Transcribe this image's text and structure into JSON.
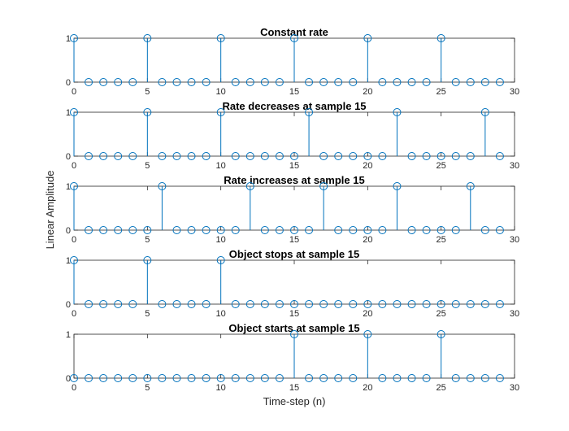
{
  "figure": {
    "xlabel": "Time-step (n)",
    "ylabel": "Linear Amplitude"
  },
  "chart_data": [
    {
      "type": "stem",
      "title": "Constant rate",
      "xlim": [
        0,
        30
      ],
      "ylim": [
        0,
        1
      ],
      "xticks": [
        0,
        5,
        10,
        15,
        20,
        25,
        30
      ],
      "yticks": [
        0,
        1
      ],
      "x": [
        0,
        1,
        2,
        3,
        4,
        5,
        6,
        7,
        8,
        9,
        10,
        11,
        12,
        13,
        14,
        15,
        16,
        17,
        18,
        19,
        20,
        21,
        22,
        23,
        24,
        25,
        26,
        27,
        28,
        29
      ],
      "values": [
        1,
        0,
        0,
        0,
        0,
        1,
        0,
        0,
        0,
        0,
        1,
        0,
        0,
        0,
        0,
        1,
        0,
        0,
        0,
        0,
        1,
        0,
        0,
        0,
        0,
        1,
        0,
        0,
        0,
        0
      ],
      "color": "#0072BD"
    },
    {
      "type": "stem",
      "title": "Rate decreases at sample 15",
      "xlim": [
        0,
        30
      ],
      "ylim": [
        0,
        1
      ],
      "xticks": [
        0,
        5,
        10,
        15,
        20,
        25,
        30
      ],
      "yticks": [
        0,
        1
      ],
      "x": [
        0,
        1,
        2,
        3,
        4,
        5,
        6,
        7,
        8,
        9,
        10,
        11,
        12,
        13,
        14,
        15,
        16,
        17,
        18,
        19,
        20,
        21,
        22,
        23,
        24,
        25,
        26,
        27,
        28,
        29
      ],
      "values": [
        1,
        0,
        0,
        0,
        0,
        1,
        0,
        0,
        0,
        0,
        1,
        0,
        0,
        0,
        0,
        0,
        1,
        0,
        0,
        0,
        0,
        0,
        1,
        0,
        0,
        0,
        0,
        0,
        1,
        0
      ],
      "color": "#0072BD"
    },
    {
      "type": "stem",
      "title": "Rate increases at sample 15",
      "xlim": [
        0,
        30
      ],
      "ylim": [
        0,
        1
      ],
      "xticks": [
        0,
        5,
        10,
        15,
        20,
        25,
        30
      ],
      "yticks": [
        0,
        1
      ],
      "x": [
        0,
        1,
        2,
        3,
        4,
        5,
        6,
        7,
        8,
        9,
        10,
        11,
        12,
        13,
        14,
        15,
        16,
        17,
        18,
        19,
        20,
        21,
        22,
        23,
        24,
        25,
        26,
        27,
        28,
        29
      ],
      "values": [
        1,
        0,
        0,
        0,
        0,
        0,
        1,
        0,
        0,
        0,
        0,
        0,
        1,
        0,
        0,
        0,
        0,
        1,
        0,
        0,
        0,
        0,
        1,
        0,
        0,
        0,
        0,
        1,
        0,
        0
      ],
      "color": "#0072BD"
    },
    {
      "type": "stem",
      "title": "Object stops at sample 15",
      "xlim": [
        0,
        30
      ],
      "ylim": [
        0,
        1
      ],
      "xticks": [
        0,
        5,
        10,
        15,
        20,
        25,
        30
      ],
      "yticks": [
        0,
        1
      ],
      "x": [
        0,
        1,
        2,
        3,
        4,
        5,
        6,
        7,
        8,
        9,
        10,
        11,
        12,
        13,
        14,
        15,
        16,
        17,
        18,
        19,
        20,
        21,
        22,
        23,
        24,
        25,
        26,
        27,
        28,
        29
      ],
      "values": [
        1,
        0,
        0,
        0,
        0,
        1,
        0,
        0,
        0,
        0,
        1,
        0,
        0,
        0,
        0,
        0,
        0,
        0,
        0,
        0,
        0,
        0,
        0,
        0,
        0,
        0,
        0,
        0,
        0,
        0
      ],
      "color": "#0072BD"
    },
    {
      "type": "stem",
      "title": "Object starts at sample 15",
      "xlim": [
        0,
        30
      ],
      "ylim": [
        0,
        1
      ],
      "xticks": [
        0,
        5,
        10,
        15,
        20,
        25,
        30
      ],
      "yticks": [
        0,
        1
      ],
      "x": [
        0,
        1,
        2,
        3,
        4,
        5,
        6,
        7,
        8,
        9,
        10,
        11,
        12,
        13,
        14,
        15,
        16,
        17,
        18,
        19,
        20,
        21,
        22,
        23,
        24,
        25,
        26,
        27,
        28,
        29
      ],
      "values": [
        0,
        0,
        0,
        0,
        0,
        0,
        0,
        0,
        0,
        0,
        0,
        0,
        0,
        0,
        0,
        1,
        0,
        0,
        0,
        0,
        1,
        0,
        0,
        0,
        0,
        1,
        0,
        0,
        0,
        0
      ],
      "color": "#0072BD"
    }
  ]
}
